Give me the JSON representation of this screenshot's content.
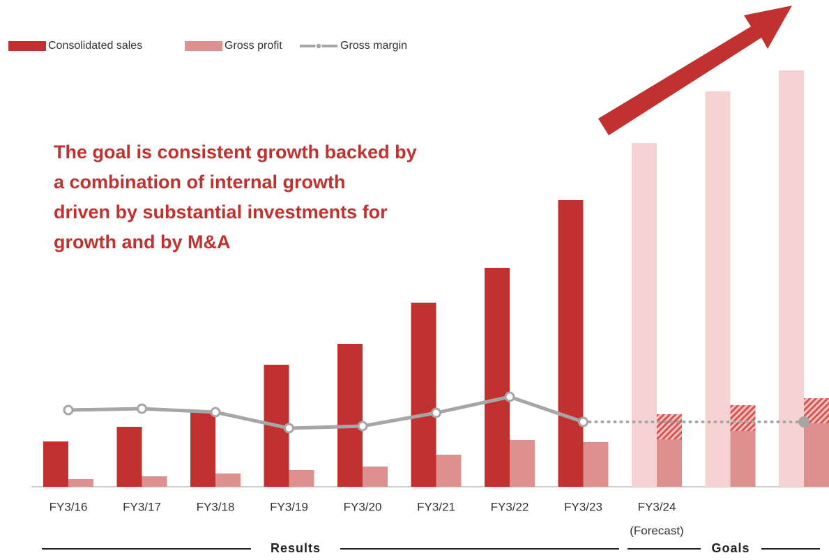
{
  "chart_data": {
    "type": "bar",
    "categories": [
      "FY3/16",
      "FY3/17",
      "FY3/18",
      "FY3/19",
      "FY3/20",
      "FY3/21",
      "FY3/22",
      "FY3/23",
      "FY3/24",
      null,
      null
    ],
    "category_note": "(Forecast)",
    "ylim": [
      0,
      600
    ],
    "series": [
      {
        "name": "Consolidated sales",
        "color": "#c0312f",
        "colors": [
          "#c0312f",
          "#c0312f",
          "#c0312f",
          "#c0312f",
          "#c0312f",
          "#c0312f",
          "#c0312f",
          "#c0312f",
          "#f6d3d3",
          "#f6d3d3",
          "#f6d3d3"
        ],
        "values": [
          65,
          86,
          107,
          175,
          205,
          264,
          314,
          411,
          493,
          567,
          597
        ]
      },
      {
        "name": "Gross profit",
        "color": "#dd908e",
        "values": [
          11,
          15,
          19,
          24,
          29,
          46,
          67,
          64,
          68,
          80,
          91
        ],
        "stretch_values": [
          null,
          null,
          null,
          null,
          null,
          null,
          null,
          null,
          36,
          37,
          36
        ]
      },
      {
        "name": "Gross margin",
        "color": "#a6a6a6",
        "type": "line",
        "values": [
          110,
          112,
          107,
          84,
          87,
          106,
          129,
          93,
          null,
          null,
          93
        ]
      }
    ],
    "annotation": [
      "The goal is consistent growth backed by",
      "a combination of internal growth",
      "driven by substantial investments for",
      "growth and by M&A"
    ],
    "groups": [
      {
        "label": "Results"
      },
      {
        "label": "Goals"
      }
    ]
  }
}
